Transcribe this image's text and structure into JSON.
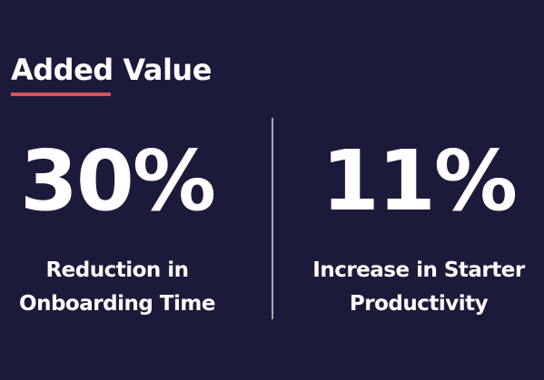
{
  "header": {
    "title": "Added Value"
  },
  "stats": [
    {
      "value": "30%",
      "label_lines": [
        "Reduction in",
        "Onboarding Time"
      ]
    },
    {
      "value": "11%",
      "label_lines": [
        "Increase in Starter",
        "Productivity"
      ]
    }
  ]
}
